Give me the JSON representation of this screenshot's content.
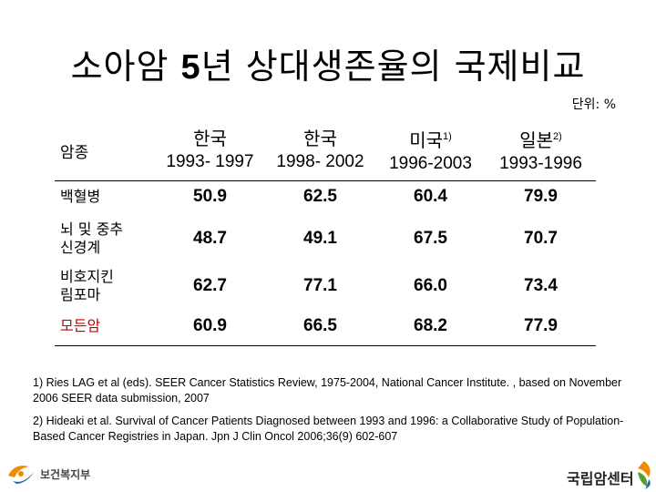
{
  "title": {
    "prefix": "소아암 ",
    "number": "5",
    "suffix": "년 상대생존율의 국제비교"
  },
  "unit": "단위: %",
  "table": {
    "corner_label": "암종",
    "columns": [
      {
        "country": "한국",
        "sup": "",
        "period": "1993- 1997"
      },
      {
        "country": "한국",
        "sup": "",
        "period": "1998- 2002"
      },
      {
        "country": "미국",
        "sup": "1)",
        "period": "1996-2003"
      },
      {
        "country": "일본",
        "sup": "2)",
        "period": "1993-1996"
      }
    ],
    "rows": [
      {
        "name": "백혈병",
        "values": [
          "50.9",
          "62.5",
          "60.4",
          "79.9"
        ]
      },
      {
        "name_line1": "뇌 및 중추",
        "name_line2": "신경계",
        "values": [
          "48.7",
          "49.1",
          "67.5",
          "70.7"
        ]
      },
      {
        "name_line1": "비호지킨",
        "name_line2": "림포마",
        "values": [
          "62.7",
          "77.1",
          "66.0",
          "73.4"
        ]
      },
      {
        "name": "모든암",
        "values": [
          "60.9",
          "66.5",
          "68.2",
          "77.9"
        ]
      }
    ]
  },
  "footnotes": [
    "1) Ries LAG et al (eds). SEER Cancer Statistics Review, 1975-2004, National Cancer Institute. , based on November 2006 SEER data submission, 2007",
    "2) Hideaki et al. Survival of Cancer Patients Diagnosed between 1993 and 1996: a Collaborative Study of Population-Based Cancer Registries in Japan. Jpn J Clin Oncol 2006;36(9) 602-607"
  ],
  "logos": {
    "left_text": "보건복지부",
    "right_text": "국립암센터"
  },
  "colors": {
    "highlight_red": "#cc0000",
    "logo_orange": "#f08a00",
    "logo_blue": "#1f5fa8",
    "logo_green": "#5aa02c"
  }
}
